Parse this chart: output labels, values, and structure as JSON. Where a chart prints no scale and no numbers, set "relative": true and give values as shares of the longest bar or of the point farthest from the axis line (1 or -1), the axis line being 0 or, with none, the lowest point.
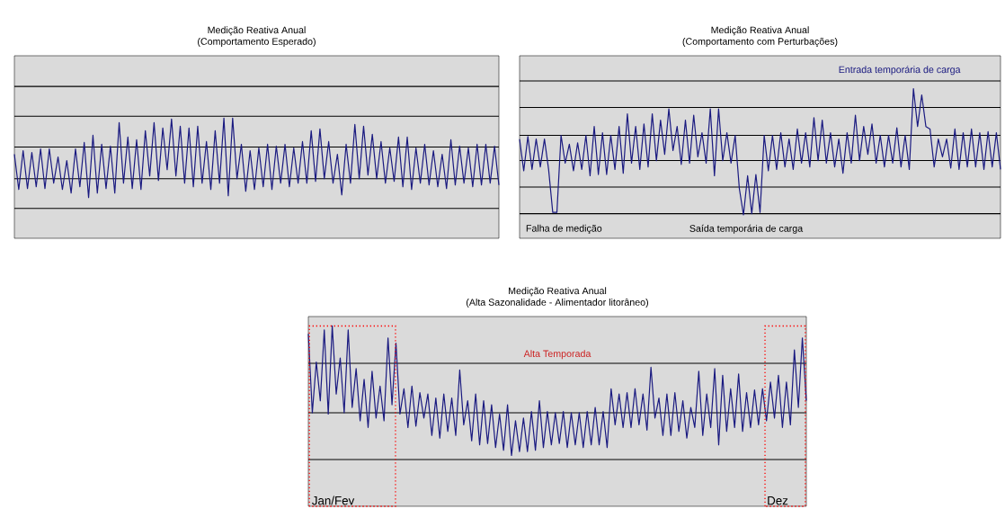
{
  "chart_data": [
    {
      "type": "line",
      "relative": true,
      "color": "#1a1a80",
      "title": "Medição Reativa Anual",
      "subtitle": "(Comportamento Esperado)",
      "ref_lines": [
        {
          "axis": "y",
          "value": 1.35,
          "color": "#000000"
        },
        {
          "axis": "y",
          "value": 1.02,
          "color": "#000000"
        },
        {
          "axis": "y",
          "value": 0.68,
          "color": "#000000"
        },
        {
          "axis": "y",
          "value": 0.33,
          "color": "#000000"
        },
        {
          "axis": "y",
          "value": 0,
          "color": "#000000"
        }
      ],
      "categories": [
        null,
        null,
        null,
        null,
        null,
        null,
        null,
        null,
        null,
        null,
        null,
        null,
        null,
        null,
        null,
        null,
        null,
        null,
        null,
        null,
        null,
        null,
        null,
        null,
        null,
        null,
        null,
        null,
        null,
        null,
        null,
        null,
        null,
        null,
        null,
        null,
        null,
        null,
        null,
        null,
        null,
        null,
        null,
        null,
        null,
        null,
        null,
        null,
        null,
        null,
        null,
        null,
        null,
        null,
        null,
        null,
        null,
        null,
        null,
        null,
        null,
        null,
        null,
        null,
        null,
        null,
        null,
        null,
        null,
        null,
        null,
        null,
        null,
        null,
        null,
        null,
        null,
        null,
        null,
        null,
        null,
        null,
        null,
        null,
        null,
        null,
        null,
        null,
        null,
        null,
        null,
        null,
        null,
        null,
        null,
        null,
        null,
        null,
        null,
        null,
        null,
        null,
        null,
        null,
        null,
        null,
        null,
        null,
        null,
        null,
        null,
        null
      ],
      "values": [
        0.6,
        0.21,
        0.64,
        0.22,
        0.62,
        0.24,
        0.66,
        0.22,
        0.66,
        0.28,
        0.57,
        0.21,
        0.53,
        0.17,
        0.66,
        0.24,
        0.73,
        0.12,
        0.81,
        0.17,
        0.71,
        0.22,
        0.69,
        0.17,
        0.95,
        0.28,
        0.79,
        0.22,
        0.76,
        0.21,
        0.86,
        0.36,
        0.95,
        0.31,
        0.89,
        0.43,
        0.99,
        0.36,
        0.91,
        0.28,
        0.89,
        0.24,
        0.91,
        0.28,
        0.74,
        0.21,
        0.86,
        0.28,
        1.0,
        0.14,
        1.0,
        0.33,
        0.71,
        0.19,
        0.64,
        0.21,
        0.67,
        0.24,
        0.71,
        0.21,
        0.69,
        0.28,
        0.71,
        0.24,
        0.67,
        0.28,
        0.74,
        0.28,
        0.86,
        0.3,
        0.88,
        0.33,
        0.74,
        0.28,
        0.6,
        0.15,
        0.71,
        0.28,
        0.93,
        0.33,
        0.91,
        0.37,
        0.82,
        0.33,
        0.74,
        0.28,
        0.67,
        0.3,
        0.79,
        0.24,
        0.79,
        0.21,
        0.67,
        0.28,
        0.71,
        0.26,
        0.64,
        0.24,
        0.6,
        0.22,
        0.76,
        0.26,
        0.69,
        0.28,
        0.67,
        0.24,
        0.71,
        0.26,
        0.71,
        0.28,
        0.69,
        0.26
      ]
    },
    {
      "type": "line",
      "relative": true,
      "color": "#1a1a80",
      "title": "Medição Reativa Anual",
      "subtitle": "(Comportamento com Perturbações)",
      "ref_lines": [
        {
          "axis": "y",
          "value": 1.06,
          "color": "#000000"
        },
        {
          "axis": "y",
          "value": 0.85,
          "color": "#000000"
        },
        {
          "axis": "y",
          "value": 0.63,
          "color": "#000000"
        },
        {
          "axis": "y",
          "value": 0.43,
          "color": "#000000"
        },
        {
          "axis": "y",
          "value": 0.22,
          "color": "#000000"
        },
        {
          "axis": "y",
          "value": 0.01,
          "color": "#000000"
        }
      ],
      "categories": [
        null,
        null,
        null,
        null,
        null,
        null,
        null,
        null,
        null,
        null,
        null,
        null,
        null,
        null,
        null,
        null,
        null,
        null,
        null,
        null,
        null,
        null,
        null,
        null,
        null,
        null,
        null,
        null,
        null,
        null,
        null,
        null,
        null,
        null,
        null,
        null,
        null,
        null,
        null,
        null,
        null,
        null,
        null,
        null,
        null,
        null,
        null,
        null,
        null,
        null,
        null,
        null,
        null,
        null,
        null,
        null,
        null,
        null,
        null,
        null,
        null,
        null,
        null,
        null,
        null,
        null,
        null,
        null,
        null,
        null,
        null,
        null,
        null,
        null,
        null,
        null,
        null,
        null,
        null,
        null,
        null,
        null,
        null,
        null,
        null,
        null,
        null,
        null,
        null,
        null,
        null,
        null,
        null,
        null,
        null,
        null,
        null,
        null,
        null,
        null,
        null,
        null,
        null,
        null,
        null,
        null,
        null,
        null,
        null,
        null,
        null,
        null,
        null,
        null,
        null,
        null,
        null
      ],
      "values": [
        0.6,
        0.35,
        0.62,
        0.36,
        0.6,
        0.38,
        0.6,
        0.36,
        0.02,
        0.02,
        0.63,
        0.41,
        0.56,
        0.35,
        0.57,
        0.36,
        0.63,
        0.31,
        0.7,
        0.32,
        0.65,
        0.32,
        0.63,
        0.36,
        0.7,
        0.33,
        0.8,
        0.41,
        0.7,
        0.36,
        0.72,
        0.38,
        0.8,
        0.43,
        0.75,
        0.48,
        0.84,
        0.51,
        0.7,
        0.4,
        0.75,
        0.41,
        0.79,
        0.46,
        0.65,
        0.41,
        0.84,
        0.31,
        0.84,
        0.43,
        0.65,
        0.41,
        0.63,
        0.21,
        0,
        0.31,
        0.01,
        0.32,
        0.02,
        0.63,
        0.35,
        0.63,
        0.36,
        0.65,
        0.38,
        0.6,
        0.36,
        0.68,
        0.41,
        0.65,
        0.38,
        0.77,
        0.43,
        0.75,
        0.41,
        0.65,
        0.38,
        0.6,
        0.33,
        0.65,
        0.41,
        0.79,
        0.43,
        0.7,
        0.48,
        0.72,
        0.41,
        0.63,
        0.38,
        0.63,
        0.41,
        0.69,
        0.38,
        0.63,
        0.36,
        1.0,
        0.7,
        0.95,
        0.7,
        0.68,
        0.38,
        0.6,
        0.46,
        0.6,
        0.37,
        0.68,
        0.36,
        0.65,
        0.38,
        0.68,
        0.38,
        0.65,
        0.36,
        0.66,
        0.38,
        0.65,
        0.36
      ],
      "annotations": [
        "Entrada temporária de carga",
        "Falha de medição",
        "Saída temporária de carga"
      ]
    },
    {
      "type": "line",
      "relative": true,
      "color": "#1a1a80",
      "title": "Medição Reativa Anual",
      "subtitle": "(Alta Sazonalidade - Alimentador litorâneo)",
      "ref_lines": [
        {
          "axis": "y",
          "value": 0.72,
          "color": "#000000"
        },
        {
          "axis": "y",
          "value": 0.35,
          "color": "#000000"
        },
        {
          "axis": "y",
          "value": 0,
          "color": "#000000"
        }
      ],
      "categories": [
        null,
        null,
        null,
        null,
        null,
        null,
        null,
        null,
        null,
        null,
        null,
        null,
        null,
        null,
        null,
        null,
        null,
        null,
        null,
        null,
        null,
        null,
        null,
        null,
        null,
        null,
        null,
        null,
        null,
        null,
        null,
        null,
        null,
        null,
        null,
        null,
        null,
        null,
        null,
        null,
        null,
        null,
        null,
        null,
        null,
        null,
        null,
        null,
        null,
        null,
        null,
        null,
        null,
        null,
        null,
        null,
        null,
        null,
        null,
        null,
        null,
        null,
        null,
        null,
        null,
        null,
        null,
        null,
        null,
        null,
        null,
        null,
        null,
        null,
        null,
        null,
        null,
        null,
        null,
        null,
        null,
        null,
        null,
        null,
        null,
        null,
        null,
        null,
        null,
        null,
        null,
        null,
        null,
        null,
        null,
        null,
        null,
        null,
        null,
        null,
        null,
        null,
        null,
        null,
        null,
        null,
        null,
        null,
        null,
        null,
        null,
        null,
        null,
        null,
        null,
        null,
        null,
        null,
        null,
        null,
        null,
        null,
        null,
        null,
        null,
        null
      ],
      "values": [
        0.94,
        0.35,
        0.73,
        0.44,
        0.97,
        0.34,
        1.0,
        0.49,
        0.76,
        0.35,
        0.97,
        0.39,
        0.68,
        0.29,
        0.6,
        0.24,
        0.66,
        0.31,
        0.55,
        0.29,
        0.91,
        0.41,
        0.87,
        0.34,
        0.53,
        0.24,
        0.55,
        0.25,
        0.5,
        0.31,
        0.49,
        0.18,
        0.46,
        0.16,
        0.49,
        0.21,
        0.46,
        0.18,
        0.67,
        0.26,
        0.44,
        0.14,
        0.49,
        0.11,
        0.44,
        0.12,
        0.41,
        0.09,
        0.34,
        0.07,
        0.41,
        0.03,
        0.29,
        0.06,
        0.31,
        0.06,
        0.36,
        0.07,
        0.44,
        0.09,
        0.36,
        0.11,
        0.35,
        0.12,
        0.36,
        0.09,
        0.35,
        0.11,
        0.35,
        0.09,
        0.36,
        0.11,
        0.39,
        0.11,
        0.36,
        0.09,
        0.53,
        0.26,
        0.49,
        0.24,
        0.5,
        0.24,
        0.53,
        0.26,
        0.49,
        0.22,
        0.69,
        0.31,
        0.46,
        0.18,
        0.49,
        0.18,
        0.5,
        0.21,
        0.44,
        0.16,
        0.39,
        0.24,
        0.66,
        0.18,
        0.49,
        0.24,
        0.68,
        0.11,
        0.63,
        0.21,
        0.53,
        0.24,
        0.64,
        0.21,
        0.5,
        0.24,
        0.52,
        0.26,
        0.53,
        0.29,
        0.58,
        0.31,
        0.63,
        0.24,
        0.58,
        0.26,
        0.82,
        0.39,
        0.91,
        0.44
      ],
      "annotations": [
        "Alta Temporada",
        "Jan/Fev",
        "Dez"
      ]
    }
  ]
}
